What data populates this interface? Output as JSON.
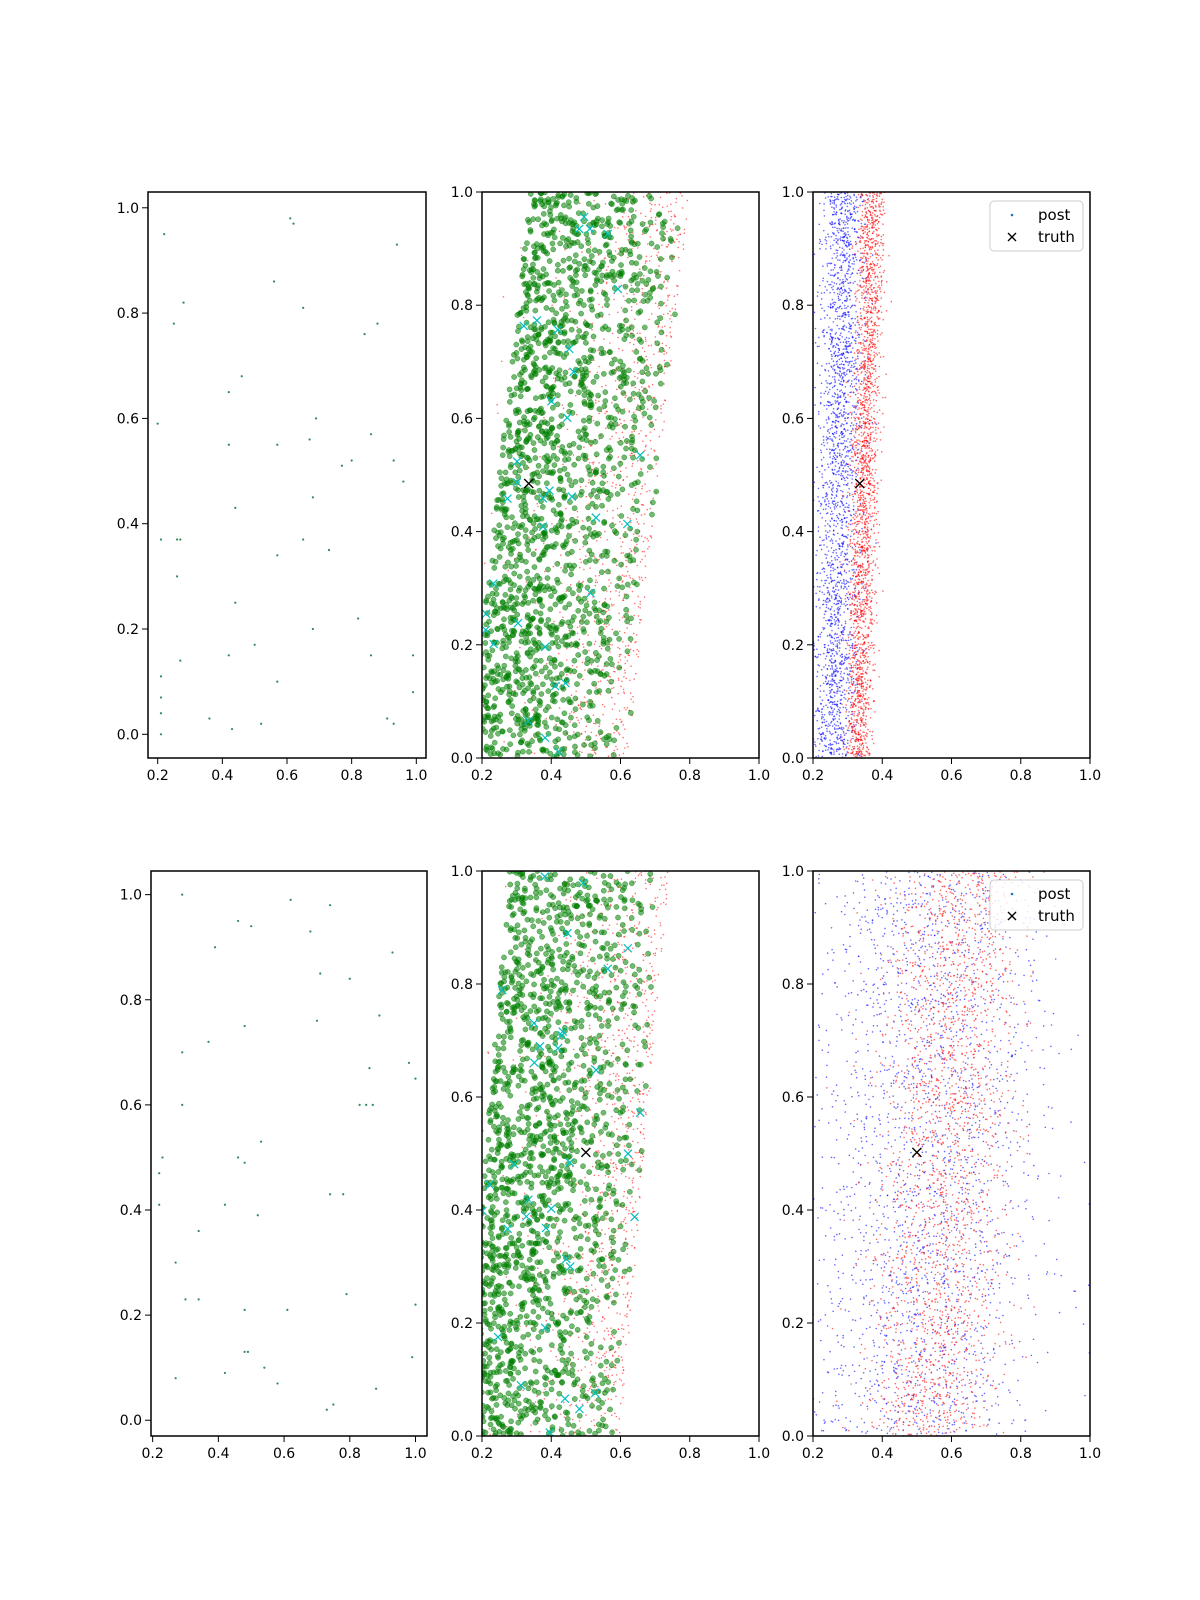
{
  "chart_data": [
    {
      "panel": "row1-col1",
      "type": "scatter",
      "xlim": [
        0.17,
        1.03
      ],
      "ylim": [
        -0.045,
        1.03
      ],
      "xticks": [
        "0.2",
        "0.4",
        "0.6",
        "0.8",
        "1.0"
      ],
      "yticks": [
        "0.0",
        "0.2",
        "0.4",
        "0.6",
        "0.8",
        "1.0"
      ],
      "series": [
        {
          "color": "#2e8b57",
          "marker": "tiny dot",
          "points": [
            [
              0.22,
              0.95
            ],
            [
              0.61,
              0.98
            ],
            [
              0.62,
              0.97
            ],
            [
              0.94,
              0.93
            ],
            [
              0.56,
              0.86
            ],
            [
              0.28,
              0.82
            ],
            [
              0.65,
              0.81
            ],
            [
              0.25,
              0.78
            ],
            [
              0.88,
              0.78
            ],
            [
              0.84,
              0.76
            ],
            [
              0.46,
              0.68
            ],
            [
              0.42,
              0.65
            ],
            [
              0.2,
              0.59
            ],
            [
              0.69,
              0.6
            ],
            [
              0.42,
              0.55
            ],
            [
              0.57,
              0.55
            ],
            [
              0.67,
              0.56
            ],
            [
              0.86,
              0.57
            ],
            [
              0.8,
              0.52
            ],
            [
              0.77,
              0.51
            ],
            [
              0.93,
              0.52
            ],
            [
              0.96,
              0.48
            ],
            [
              0.68,
              0.45
            ],
            [
              0.44,
              0.43
            ],
            [
              0.21,
              0.37
            ],
            [
              0.26,
              0.37
            ],
            [
              0.27,
              0.37
            ],
            [
              0.65,
              0.37
            ],
            [
              0.57,
              0.34
            ],
            [
              0.73,
              0.35
            ],
            [
              0.26,
              0.3
            ],
            [
              0.44,
              0.25
            ],
            [
              0.82,
              0.22
            ],
            [
              0.68,
              0.2
            ],
            [
              0.5,
              0.17
            ],
            [
              0.42,
              0.15
            ],
            [
              0.27,
              0.14
            ],
            [
              0.86,
              0.15
            ],
            [
              0.99,
              0.15
            ],
            [
              0.57,
              0.1
            ],
            [
              0.21,
              0.11
            ],
            [
              0.21,
              0.07
            ],
            [
              0.99,
              0.08
            ],
            [
              0.21,
              0.04
            ],
            [
              0.36,
              0.03
            ],
            [
              0.52,
              0.02
            ],
            [
              0.91,
              0.03
            ],
            [
              0.93,
              0.02
            ],
            [
              0.43,
              0.01
            ],
            [
              0.21,
              0.0
            ]
          ]
        }
      ]
    },
    {
      "panel": "row1-col2",
      "type": "scatter",
      "xlim": [
        0.2,
        1.0
      ],
      "ylim": [
        0.0,
        1.0
      ],
      "xticks": [
        "0.2",
        "0.4",
        "0.6",
        "0.8",
        "1.0"
      ],
      "yticks": [
        "0.0",
        "0.2",
        "0.4",
        "0.6",
        "0.8",
        "1.0"
      ],
      "cloud": {
        "band_left_bottom": 0.62,
        "band_left_top": 0.8,
        "band_width": 0.46
      },
      "series": [
        {
          "color": "#ff0000",
          "marker": "small dot",
          "n": 1100
        },
        {
          "color": "#008000",
          "marker": "circle",
          "n": 1700
        },
        {
          "color": "#00bfbf",
          "marker": "x",
          "n": 34
        },
        {
          "color": "#000000",
          "marker": "x",
          "points": [
            [
              0.335,
              0.485
            ]
          ]
        }
      ]
    },
    {
      "panel": "row1-col3",
      "type": "scatter",
      "xlim": [
        0.2,
        1.0
      ],
      "ylim": [
        0.0,
        1.0
      ],
      "xticks": [
        "0.2",
        "0.4",
        "0.6",
        "0.8",
        "1.0"
      ],
      "yticks": [
        "0.0",
        "0.2",
        "0.4",
        "0.6",
        "0.8",
        "1.0"
      ],
      "legend_position": "top-right",
      "legend": [
        {
          "label": "post",
          "marker": "dot",
          "color": "#1f77b4"
        },
        {
          "label": "truth",
          "marker": "x",
          "color": "#000000"
        }
      ],
      "series": [
        {
          "color": "#0000ff",
          "marker": "small dot",
          "n": 2200,
          "band_center_bottom": 0.26,
          "band_center_top": 0.29,
          "band_width": 0.075
        },
        {
          "color": "#ff0000",
          "marker": "small dot",
          "n": 2200,
          "band_center_bottom": 0.33,
          "band_center_top": 0.37,
          "band_width": 0.045
        },
        {
          "color": "#000000",
          "marker": "x",
          "points": [
            [
              0.335,
              0.485
            ]
          ]
        }
      ]
    },
    {
      "panel": "row2-col1",
      "type": "scatter",
      "xlim": [
        0.195,
        1.035
      ],
      "ylim": [
        -0.03,
        1.045
      ],
      "xticks": [
        "0.2",
        "0.4",
        "0.6",
        "0.8",
        "1.0"
      ],
      "yticks": [
        "0.0",
        "0.2",
        "0.4",
        "0.6",
        "0.8",
        "1.0"
      ],
      "series": [
        {
          "color": "#2e8b57",
          "marker": "tiny dot",
          "points": [
            [
              0.29,
              1.0
            ],
            [
              0.46,
              0.95
            ],
            [
              0.5,
              0.94
            ],
            [
              0.62,
              0.99
            ],
            [
              0.74,
              0.98
            ],
            [
              0.39,
              0.9
            ],
            [
              0.68,
              0.93
            ],
            [
              0.93,
              0.89
            ],
            [
              0.71,
              0.85
            ],
            [
              0.8,
              0.84
            ],
            [
              0.48,
              0.75
            ],
            [
              0.89,
              0.77
            ],
            [
              0.7,
              0.76
            ],
            [
              0.37,
              0.72
            ],
            [
              0.29,
              0.7
            ],
            [
              0.86,
              0.67
            ],
            [
              0.98,
              0.68
            ],
            [
              1.0,
              0.65
            ],
            [
              0.29,
              0.6
            ],
            [
              0.83,
              0.6
            ],
            [
              0.85,
              0.6
            ],
            [
              0.87,
              0.6
            ],
            [
              0.53,
              0.53
            ],
            [
              0.23,
              0.5
            ],
            [
              0.46,
              0.5
            ],
            [
              0.48,
              0.49
            ],
            [
              0.22,
              0.47
            ],
            [
              0.74,
              0.43
            ],
            [
              0.78,
              0.43
            ],
            [
              0.42,
              0.41
            ],
            [
              0.22,
              0.41
            ],
            [
              0.52,
              0.39
            ],
            [
              0.34,
              0.36
            ],
            [
              0.27,
              0.3
            ],
            [
              0.3,
              0.23
            ],
            [
              0.34,
              0.23
            ],
            [
              0.61,
              0.21
            ],
            [
              0.48,
              0.21
            ],
            [
              0.79,
              0.24
            ],
            [
              1.0,
              0.22
            ],
            [
              0.48,
              0.13
            ],
            [
              0.49,
              0.13
            ],
            [
              0.99,
              0.12
            ],
            [
              0.54,
              0.1
            ],
            [
              0.42,
              0.09
            ],
            [
              0.27,
              0.08
            ],
            [
              0.58,
              0.07
            ],
            [
              0.88,
              0.06
            ],
            [
              0.75,
              0.03
            ],
            [
              0.73,
              0.02
            ]
          ]
        }
      ]
    },
    {
      "panel": "row2-col2",
      "type": "scatter",
      "xlim": [
        0.2,
        1.0
      ],
      "ylim": [
        0.0,
        1.0
      ],
      "xticks": [
        "0.2",
        "0.4",
        "0.6",
        "0.8",
        "1.0"
      ],
      "yticks": [
        "0.0",
        "0.2",
        "0.4",
        "0.6",
        "0.8",
        "1.0"
      ],
      "cloud": {
        "band_left_bottom": 0.6,
        "band_left_top": 0.74,
        "band_width": 0.46
      },
      "series": [
        {
          "color": "#ff0000",
          "marker": "small dot",
          "n": 1100
        },
        {
          "color": "#008000",
          "marker": "circle",
          "n": 1700
        },
        {
          "color": "#00bfbf",
          "marker": "x",
          "n": 34
        },
        {
          "color": "#000000",
          "marker": "x",
          "points": [
            [
              0.5,
              0.502
            ]
          ]
        }
      ]
    },
    {
      "panel": "row2-col3",
      "type": "scatter",
      "xlim": [
        0.2,
        1.0
      ],
      "ylim": [
        0.0,
        1.0
      ],
      "xticks": [
        "0.2",
        "0.4",
        "0.6",
        "0.8",
        "1.0"
      ],
      "yticks": [
        "0.0",
        "0.2",
        "0.4",
        "0.6",
        "0.8",
        "1.0"
      ],
      "legend_position": "top-right",
      "legend": [
        {
          "label": "post",
          "marker": "dot",
          "color": "#1f77b4"
        },
        {
          "label": "truth",
          "marker": "x",
          "color": "#000000"
        }
      ],
      "series": [
        {
          "color": "#0000ff",
          "marker": "small dot",
          "n": 2200,
          "band_center_bottom": 0.5,
          "band_center_top": 0.55,
          "band_width": 0.4
        },
        {
          "color": "#ff0000",
          "marker": "small dot",
          "n": 2200,
          "band_center_bottom": 0.54,
          "band_center_top": 0.62,
          "band_width": 0.22
        },
        {
          "color": "#000000",
          "marker": "x",
          "points": [
            [
              0.5,
              0.502
            ]
          ]
        }
      ]
    }
  ]
}
